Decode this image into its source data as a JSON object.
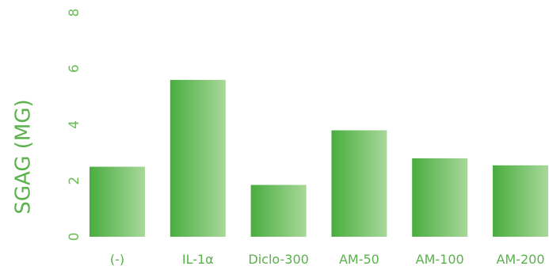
{
  "chart_data": {
    "type": "bar",
    "title": "",
    "xlabel": "",
    "ylabel": "SGAG (MG)",
    "ylim": [
      0,
      8
    ],
    "yticks": [
      "0",
      "2",
      "4",
      "6",
      "8"
    ],
    "grid": false,
    "categories": [
      "(-)",
      "IL-1α",
      "Diclo-300",
      "AM-50",
      "AM-100",
      "AM-200"
    ],
    "values": [
      2.5,
      5.6,
      1.85,
      3.8,
      2.8,
      2.55
    ]
  },
  "colors": {
    "bar_dark": "#49ad3f",
    "bar_light": "#a8d89a",
    "text": "#59b24a",
    "tick": "#6abf52"
  }
}
